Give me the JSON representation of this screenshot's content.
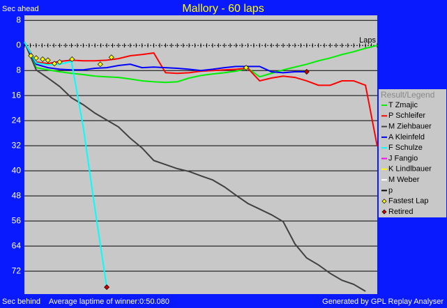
{
  "chart_data": {
    "type": "line",
    "title": "Mallory - 60 laps",
    "y_label_top": "Sec ahead",
    "y_label_bottom": "Sec behind",
    "footer_left": "Average laptime of winner:0:50.080",
    "footer_right": "Generated by GPL Replay Analyser",
    "x_label": "Laps",
    "legend_title": "Result/Legend",
    "xlim": [
      0,
      60
    ],
    "ylim": [
      -9.6,
      79.3
    ],
    "y_inverted": true,
    "grid": true,
    "yticks": [
      {
        "value": -8,
        "label": "8"
      },
      0,
      8,
      16,
      24,
      32,
      40,
      48,
      56,
      64,
      72
    ],
    "x": [
      0,
      2,
      4,
      6,
      8,
      10,
      12,
      14,
      16,
      18,
      20,
      22,
      24,
      26,
      28,
      30,
      32,
      34,
      36,
      38,
      40,
      42,
      44,
      46,
      48,
      50,
      52,
      54,
      56,
      58,
      60
    ],
    "series": [
      {
        "name": "T Zmajic",
        "color": "#00ee00",
        "values": [
          -1.1,
          7.1,
          7.8,
          8.4,
          8.9,
          9.3,
          9.8,
          10,
          10.2,
          10.7,
          11.3,
          11.6,
          11.8,
          11.6,
          10.4,
          9.6,
          9.1,
          8.7,
          8.2,
          7.3,
          10,
          8.9,
          7.8,
          6.9,
          6,
          4.9,
          4,
          2.9,
          2,
          0.9,
          0
        ]
      },
      {
        "name": "P Schleifer",
        "color": "#ff0000",
        "values": [
          -1.1,
          5.3,
          5.8,
          5.1,
          4.7,
          4.9,
          4.9,
          4.7,
          4.2,
          3.3,
          2.9,
          2.4,
          8.7,
          8.9,
          8.7,
          8.2,
          8,
          7.8,
          7.6,
          7.3,
          11.3,
          10.4,
          9.8,
          10.2,
          11.3,
          12.7,
          12.7,
          11.3,
          11.3,
          12.7,
          32.2
        ]
      },
      {
        "name": "M Ziehbauer",
        "color": "#404040",
        "values": [
          -1.1,
          7.8,
          10.4,
          13.1,
          16.7,
          18.9,
          21.6,
          23.8,
          26,
          29.6,
          32.7,
          36.7,
          38,
          39.3,
          40.2,
          41.6,
          42.9,
          45.1,
          47.8,
          50.4,
          52.2,
          54,
          56.2,
          63.3,
          67.8,
          70,
          72.7,
          74.9,
          76.2,
          78.4,
          null
        ]
      },
      {
        "name": "A Kleinfeld",
        "color": "#0000ff",
        "values": [
          -1.1,
          6,
          7.1,
          7.6,
          7.8,
          7.8,
          7.3,
          7.1,
          6.4,
          6,
          7.1,
          6.9,
          7.1,
          7.3,
          7.6,
          8,
          7.6,
          7.1,
          6.7,
          6.7,
          6.7,
          8.4,
          8.7,
          8.4,
          8.4,
          null,
          null,
          null,
          null,
          null,
          null
        ]
      },
      {
        "name": "F Schulze",
        "color": "#00ffff",
        "values": [
          -1.1,
          5.6,
          6.2,
          6,
          5.1,
          26,
          52.2,
          77.1,
          null,
          null,
          null,
          null,
          null,
          null,
          null,
          null,
          null,
          null,
          null,
          null,
          null,
          null,
          null,
          null,
          null,
          null,
          null,
          null,
          null,
          null,
          null
        ]
      },
      {
        "name": "J Fangio",
        "color": "#ff00ff",
        "values": [
          null,
          null,
          null,
          null,
          null,
          null,
          null,
          null,
          null,
          null,
          null,
          null,
          null,
          null,
          null,
          null,
          null,
          null,
          null,
          null,
          null,
          null,
          null,
          null,
          null,
          null,
          null,
          null,
          null,
          null,
          null
        ]
      },
      {
        "name": "K Lindlbauer",
        "color": "#ffff00",
        "values": [
          null,
          null,
          null,
          null,
          null,
          null,
          null,
          null,
          null,
          null,
          null,
          null,
          null,
          null,
          null,
          null,
          null,
          null,
          null,
          null,
          null,
          null,
          null,
          null,
          null,
          null,
          null,
          null,
          null,
          null,
          null
        ]
      },
      {
        "name": "M Weber",
        "color": "#ffffff",
        "values": [
          null,
          null,
          null,
          null,
          null,
          null,
          null,
          null,
          null,
          null,
          null,
          null,
          null,
          null,
          null,
          null,
          null,
          null,
          null,
          null,
          null,
          null,
          null,
          null,
          null,
          null,
          null,
          null,
          null,
          null,
          null
        ]
      },
      {
        "name": "p",
        "color": "#000000",
        "values": [
          null,
          null,
          null,
          null,
          null,
          null,
          null,
          null,
          null,
          null,
          null,
          null,
          null,
          null,
          null,
          null,
          null,
          null,
          null,
          null,
          null,
          null,
          null,
          null,
          null,
          null,
          null,
          null,
          null,
          null,
          null
        ]
      }
    ],
    "fastest_laps": {
      "name": "Fastest Lap",
      "color": "#ffff00",
      "x": [
        1.1,
        2,
        3.1,
        4,
        5.1,
        6,
        8.1,
        12.9,
        14.8,
        37.7
      ],
      "values": [
        3.3,
        4,
        4.4,
        4.7,
        5.8,
        5.3,
        4.4,
        6,
        3.8,
        7.1
      ]
    },
    "retired": {
      "name": "Retired",
      "color": "#cc0000",
      "x": [
        14,
        48
      ],
      "values": [
        77.1,
        8.4
      ]
    }
  }
}
